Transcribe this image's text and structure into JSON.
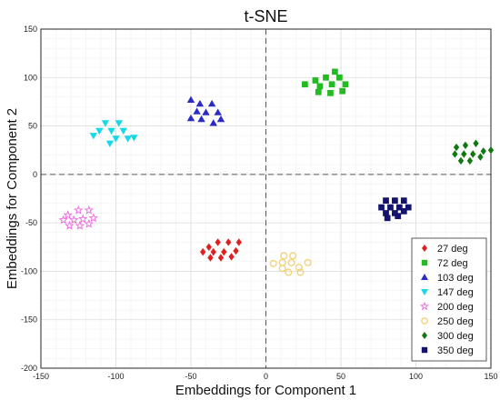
{
  "chart_data": {
    "type": "scatter",
    "title": "t-SNE",
    "xlabel": "Embeddings for Component 1",
    "ylabel": "Embeddings for Component 2",
    "xlim": [
      -150,
      150
    ],
    "ylim": [
      -200,
      150
    ],
    "xticks": [
      "-150",
      "-100",
      "-50",
      "0",
      "50",
      "100",
      "150"
    ],
    "yticks": [
      "-200",
      "-150",
      "-100",
      "-50",
      "0",
      "50",
      "100",
      "150"
    ],
    "grid": true,
    "minor_grid": true,
    "zero_lines": true,
    "legend_position": "bottom-right",
    "series": [
      {
        "name": "27 deg",
        "marker": "diamond",
        "color": "#e02020",
        "points": [
          [
            -38,
            -75
          ],
          [
            -32,
            -70
          ],
          [
            -25,
            -70
          ],
          [
            -18,
            -70
          ],
          [
            -42,
            -80
          ],
          [
            -35,
            -80
          ],
          [
            -28,
            -80
          ],
          [
            -20,
            -79
          ],
          [
            -37,
            -86
          ],
          [
            -30,
            -86
          ],
          [
            -23,
            -85
          ]
        ]
      },
      {
        "name": "72 deg",
        "marker": "square",
        "color": "#22bb22",
        "points": [
          [
            33,
            97
          ],
          [
            40,
            100
          ],
          [
            46,
            106
          ],
          [
            49,
            100
          ],
          [
            26,
            93
          ],
          [
            36,
            91
          ],
          [
            44,
            93
          ],
          [
            53,
            93
          ],
          [
            35,
            85
          ],
          [
            43,
            84
          ],
          [
            51,
            86
          ]
        ]
      },
      {
        "name": "103 deg",
        "marker": "triangle-up",
        "color": "#2b2bc8",
        "points": [
          [
            -50,
            77
          ],
          [
            -44,
            73
          ],
          [
            -36,
            73
          ],
          [
            -46,
            65
          ],
          [
            -40,
            64
          ],
          [
            -32,
            64
          ],
          [
            -50,
            58
          ],
          [
            -43,
            57
          ],
          [
            -35,
            53
          ],
          [
            -30,
            57
          ]
        ]
      },
      {
        "name": "147 deg",
        "marker": "triangle-down",
        "color": "#16d8e8",
        "points": [
          [
            -107,
            53
          ],
          [
            -98,
            53
          ],
          [
            -111,
            45
          ],
          [
            -103,
            45
          ],
          [
            -95,
            45
          ],
          [
            -115,
            40
          ],
          [
            -100,
            37
          ],
          [
            -92,
            37
          ],
          [
            -104,
            32
          ],
          [
            -88,
            38
          ]
        ]
      },
      {
        "name": "200 deg",
        "marker": "star",
        "color": "#ee66dd",
        "points": [
          [
            -132,
            -42
          ],
          [
            -125,
            -37
          ],
          [
            -118,
            -37
          ],
          [
            -135,
            -47
          ],
          [
            -128,
            -47
          ],
          [
            -122,
            -46
          ],
          [
            -115,
            -45
          ],
          [
            -131,
            -53
          ],
          [
            -124,
            -53
          ],
          [
            -118,
            -51
          ]
        ]
      },
      {
        "name": "250 deg",
        "marker": "circle",
        "color": "#f3d27a",
        "points": [
          [
            12,
            -84
          ],
          [
            18,
            -84
          ],
          [
            5,
            -92
          ],
          [
            11,
            -91
          ],
          [
            17,
            -91
          ],
          [
            22,
            -96
          ],
          [
            28,
            -91
          ],
          [
            11,
            -97
          ],
          [
            15,
            -101
          ],
          [
            23,
            -101
          ]
        ]
      },
      {
        "name": "300 deg",
        "marker": "diamond",
        "color": "#117711",
        "points": [
          [
            127,
            28
          ],
          [
            133,
            30
          ],
          [
            140,
            32
          ],
          [
            126,
            21
          ],
          [
            132,
            21
          ],
          [
            138,
            21
          ],
          [
            145,
            24
          ],
          [
            130,
            14
          ],
          [
            136,
            14
          ],
          [
            143,
            18
          ],
          [
            150,
            25
          ]
        ]
      },
      {
        "name": "350 deg",
        "marker": "square",
        "color": "#141470",
        "points": [
          [
            80,
            -27
          ],
          [
            86,
            -27
          ],
          [
            92,
            -27
          ],
          [
            77,
            -34
          ],
          [
            83,
            -34
          ],
          [
            89,
            -34
          ],
          [
            95,
            -34
          ],
          [
            80,
            -40
          ],
          [
            86,
            -40
          ],
          [
            92,
            -38
          ],
          [
            81,
            -45
          ],
          [
            88,
            -43
          ]
        ]
      }
    ]
  }
}
